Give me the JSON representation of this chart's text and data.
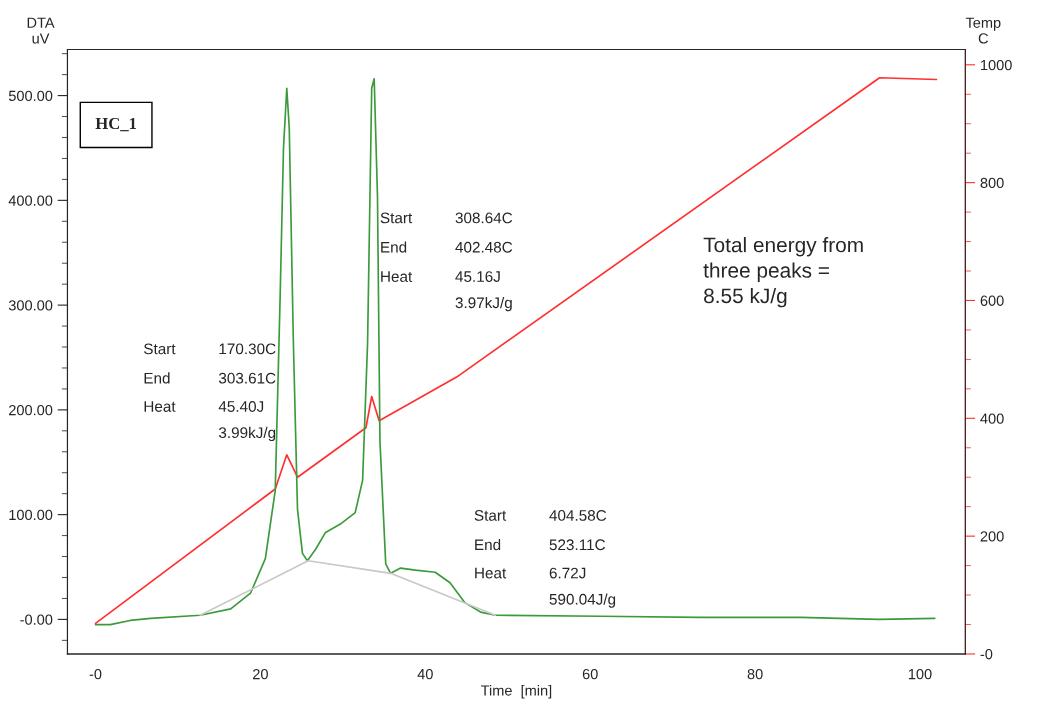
{
  "chart_data": {
    "type": "line",
    "xlabel": "Time  [min]",
    "ylabel": "DTA\nuV",
    "y2label": "Temp\nC",
    "xlim": [
      -3.4,
      105.5
    ],
    "xticks": [
      {
        "value": 0,
        "label": "-0"
      },
      20,
      40,
      60,
      80,
      100
    ],
    "ylim": [
      -33,
      544
    ],
    "yticks": [
      {
        "value": 0,
        "label": "-0.00"
      },
      {
        "value": 100,
        "label": "100.00"
      },
      {
        "value": 200,
        "label": "200.00"
      },
      {
        "value": 300,
        "label": "300.00"
      },
      {
        "value": 400,
        "label": "400.00"
      },
      {
        "value": 500,
        "label": "500.00"
      }
    ],
    "y2lim": [
      0,
      1026
    ],
    "y2ticks": [
      {
        "value": 0,
        "label": "-0"
      },
      200,
      400,
      600,
      800,
      1000
    ],
    "series": [
      {
        "color": "#3c9a3c",
        "x": [
          0,
          1.8,
          4.2,
          6.7,
          12.7,
          16.4,
          18.8,
          20.6,
          21.8,
          22.4,
          22.8,
          23.2,
          23.5,
          24.0,
          24.5,
          25.1,
          25.7,
          26.7,
          27.9,
          29.7,
          31.5,
          32.4,
          33.0,
          33.5,
          33.8,
          34.2,
          34.5,
          35.2,
          35.8,
          37.0,
          38.8,
          41.2,
          43.0,
          44.8,
          46.7,
          48.5,
          61.2,
          73.3,
          85.5,
          95,
          101.8
        ],
        "values": [
          -5,
          -5,
          -1,
          1,
          4,
          10,
          25,
          58,
          123,
          310,
          450,
          507,
          469,
          264,
          105,
          63,
          56,
          67,
          83,
          91,
          102,
          133,
          264,
          507,
          516,
          404,
          170,
          53,
          44,
          49,
          47,
          45,
          35,
          16,
          7,
          4,
          3,
          2,
          2,
          0,
          1
        ]
      },
      {
        "color": "#c8c8c8",
        "x": [
          12.7,
          25.8,
          35.8,
          48.5
        ],
        "values": [
          4,
          56,
          44,
          4
        ]
      },
      {
        "color": "#ff3030",
        "axis": "y2",
        "x": [
          0,
          21.8,
          23.2,
          24.5,
          24.8,
          32.8,
          33.5,
          34.4,
          43.8,
          95.1,
          102
        ],
        "values": [
          52,
          280,
          338,
          300,
          303,
          384,
          437,
          396,
          470,
          978,
          975
        ]
      }
    ],
    "annotations": [
      "HC_1",
      "Start",
      "170.30C",
      "End",
      "303.61C",
      "Heat",
      "45.40J",
      "3.99kJ/g",
      "Start",
      "308.64C",
      "End",
      "402.48C",
      "Heat",
      "45.16J",
      "3.97kJ/g",
      "Start",
      "404.58C",
      "End",
      "523.11C",
      "Heat",
      "6.72J",
      "590.04J/g",
      "Total energy from\nthree peaks =\n8.55 kJ/g"
    ],
    "legend": false,
    "grid": false
  }
}
